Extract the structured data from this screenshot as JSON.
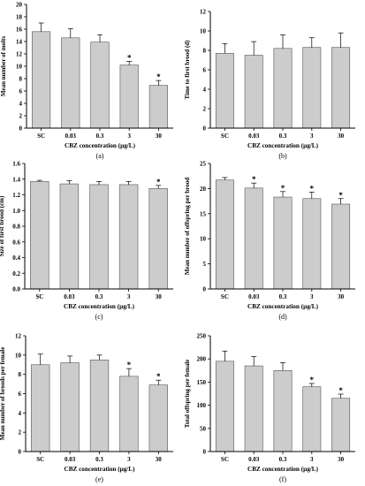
{
  "figure": {
    "colors": {
      "bar_fill": "#cccccc",
      "bar_stroke": "#555555",
      "axis": "#000000"
    }
  },
  "chart_data": [
    {
      "type": "bar",
      "panel_label": "(a)",
      "categories": [
        "SC",
        "0.03",
        "0.3",
        "3",
        "30"
      ],
      "values": [
        15.6,
        14.6,
        13.9,
        10.2,
        6.9
      ],
      "errors": [
        1.4,
        1.5,
        1.2,
        0.6,
        0.8
      ],
      "significant": [
        "",
        "",
        "",
        "*",
        "*"
      ],
      "ylabel": "Mean number of molts",
      "xlabel": "CBZ concentration (μg/L)",
      "ylim": [
        0,
        20
      ],
      "yticks": [
        0,
        2,
        4,
        6,
        8,
        10,
        12,
        14,
        16,
        18,
        20
      ],
      "ytick_labels": [
        "0",
        "2",
        "4",
        "6",
        "8",
        "10",
        "12",
        "14",
        "16",
        "18",
        "20"
      ],
      "grid": false,
      "legend": "none"
    },
    {
      "type": "bar",
      "panel_label": "(b)",
      "categories": [
        "SC",
        "0.03",
        "0.3",
        "3",
        "30"
      ],
      "values": [
        7.7,
        7.5,
        8.2,
        8.3,
        8.3
      ],
      "errors": [
        1.0,
        1.4,
        1.4,
        1.0,
        1.5
      ],
      "significant": [
        "",
        "",
        "",
        "",
        ""
      ],
      "ylabel": "Time to first brood (d)",
      "xlabel": "CBZ concentration (μg/L)",
      "ylim": [
        0,
        12
      ],
      "yticks": [
        0,
        2,
        4,
        6,
        8,
        10,
        12
      ],
      "ytick_labels": [
        "0",
        "2",
        "4",
        "6",
        "8",
        "10",
        "12"
      ],
      "grid": false,
      "legend": "none"
    },
    {
      "type": "bar",
      "panel_label": "(c)",
      "categories": [
        "SC",
        "0.03",
        "0.3",
        "3",
        "30"
      ],
      "values": [
        1.37,
        1.34,
        1.33,
        1.33,
        1.28
      ],
      "errors": [
        0.015,
        0.04,
        0.04,
        0.04,
        0.04
      ],
      "significant": [
        "",
        "",
        "",
        "",
        "*"
      ],
      "ylabel": "Size of first brood (cm)",
      "xlabel": "CBZ concentration (μg/L)",
      "ylim": [
        0,
        1.6
      ],
      "yticks": [
        0,
        0.2,
        0.4,
        0.6,
        0.8,
        1.0,
        1.2,
        1.4,
        1.6
      ],
      "ytick_labels": [
        "0.0",
        "0.2",
        "0.4",
        "0.6",
        "0.8",
        "1.0",
        "1.2",
        "1.4",
        "1.6"
      ],
      "grid": false,
      "legend": "none"
    },
    {
      "type": "bar",
      "panel_label": "(d)",
      "categories": [
        "SC",
        "0.03",
        "0.3",
        "3",
        "30"
      ],
      "values": [
        21.7,
        20.1,
        18.3,
        18.0,
        16.9
      ],
      "errors": [
        0.5,
        1.0,
        1.1,
        1.3,
        1.1
      ],
      "significant": [
        "",
        "*",
        "*",
        "*",
        "*"
      ],
      "ylabel": "Mean number of offspring per brood",
      "xlabel": "CBZ concentration (μg/L)",
      "ylim": [
        0,
        25
      ],
      "yticks": [
        0,
        5,
        10,
        15,
        20,
        25
      ],
      "ytick_labels": [
        "0",
        "5",
        "10",
        "15",
        "20",
        "25"
      ],
      "grid": false,
      "legend": "none"
    },
    {
      "type": "bar",
      "panel_label": "(e)",
      "categories": [
        "SC",
        "0.03",
        "0.3",
        "3",
        "30"
      ],
      "values": [
        9.0,
        9.2,
        9.5,
        7.8,
        6.9
      ],
      "errors": [
        1.1,
        0.7,
        0.5,
        0.8,
        0.5
      ],
      "significant": [
        "",
        "",
        "",
        "*",
        "*"
      ],
      "ylabel": "Mean number of broods per female",
      "xlabel": "CBZ concentration (μg/L)",
      "ylim": [
        0,
        12
      ],
      "yticks": [
        0,
        2,
        4,
        6,
        8,
        10,
        12
      ],
      "ytick_labels": [
        "0",
        "2",
        "4",
        "6",
        "8",
        "10",
        "12"
      ],
      "grid": false,
      "legend": "none"
    },
    {
      "type": "bar",
      "panel_label": "(f)",
      "categories": [
        "SC",
        "0.03",
        "0.3",
        "3",
        "30"
      ],
      "values": [
        195,
        185,
        175,
        140,
        115
      ],
      "errors": [
        22,
        20,
        17,
        7,
        9
      ],
      "significant": [
        "",
        "",
        "",
        "*",
        "*"
      ],
      "ylabel": "Total offspring per female",
      "xlabel": "CBZ concentration (μg/L)",
      "ylim": [
        0,
        250
      ],
      "yticks": [
        0,
        50,
        100,
        150,
        200,
        250
      ],
      "ytick_labels": [
        "0",
        "50",
        "100",
        "150",
        "200",
        "250"
      ],
      "grid": false,
      "legend": "none"
    }
  ]
}
